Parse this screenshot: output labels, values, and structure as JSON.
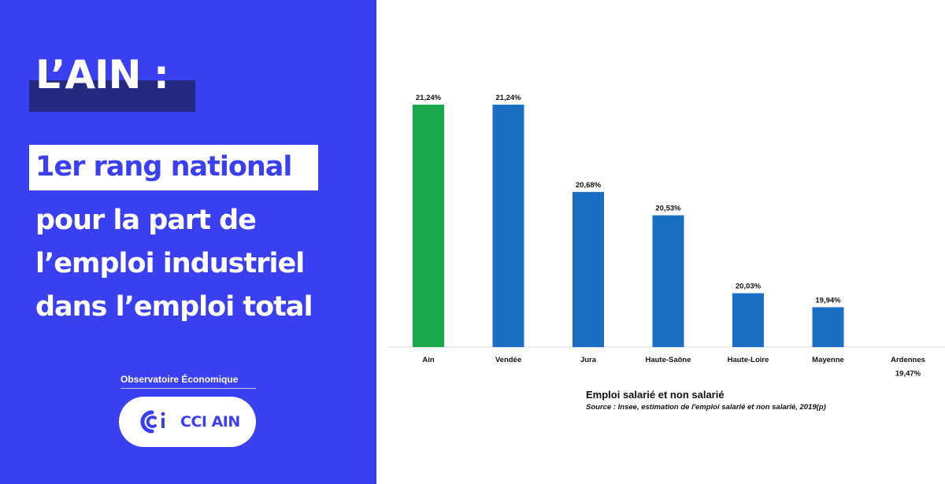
{
  "left_panel": {
    "title": "L’AIN :",
    "rank": "1er rang national",
    "subtitle_lines": [
      "pour la part de",
      "l’emploi industriel",
      "dans l’emploi total"
    ],
    "observatory": "Observatoire Économique",
    "logo_text": "CCI AIN",
    "colors": {
      "background": "#3a3ff0",
      "title_highlight": "#232a80"
    }
  },
  "chart_data": {
    "type": "bar",
    "categories": [
      "Ain",
      "Vendée",
      "Jura",
      "Haute-Saône",
      "Haute-Loire",
      "Mayenne",
      "Ardennes"
    ],
    "values": [
      21.24,
      21.24,
      20.68,
      20.53,
      20.03,
      19.94,
      19.47
    ],
    "data_labels": [
      "21,24%",
      "21,24%",
      "20,68%",
      "20,53%",
      "20,03%",
      "19,94%",
      "19,47%"
    ],
    "highlight_index": 0,
    "colors": {
      "highlight": "#1aa84a",
      "default": "#1a6fc4"
    },
    "title": "Emploi salarié et non salarié",
    "source": "Source : Insee, estimation de l'emploi salarié et non salarié, 2019(p)",
    "xlabel": "",
    "ylabel": "",
    "grid": false,
    "legend": "none"
  }
}
